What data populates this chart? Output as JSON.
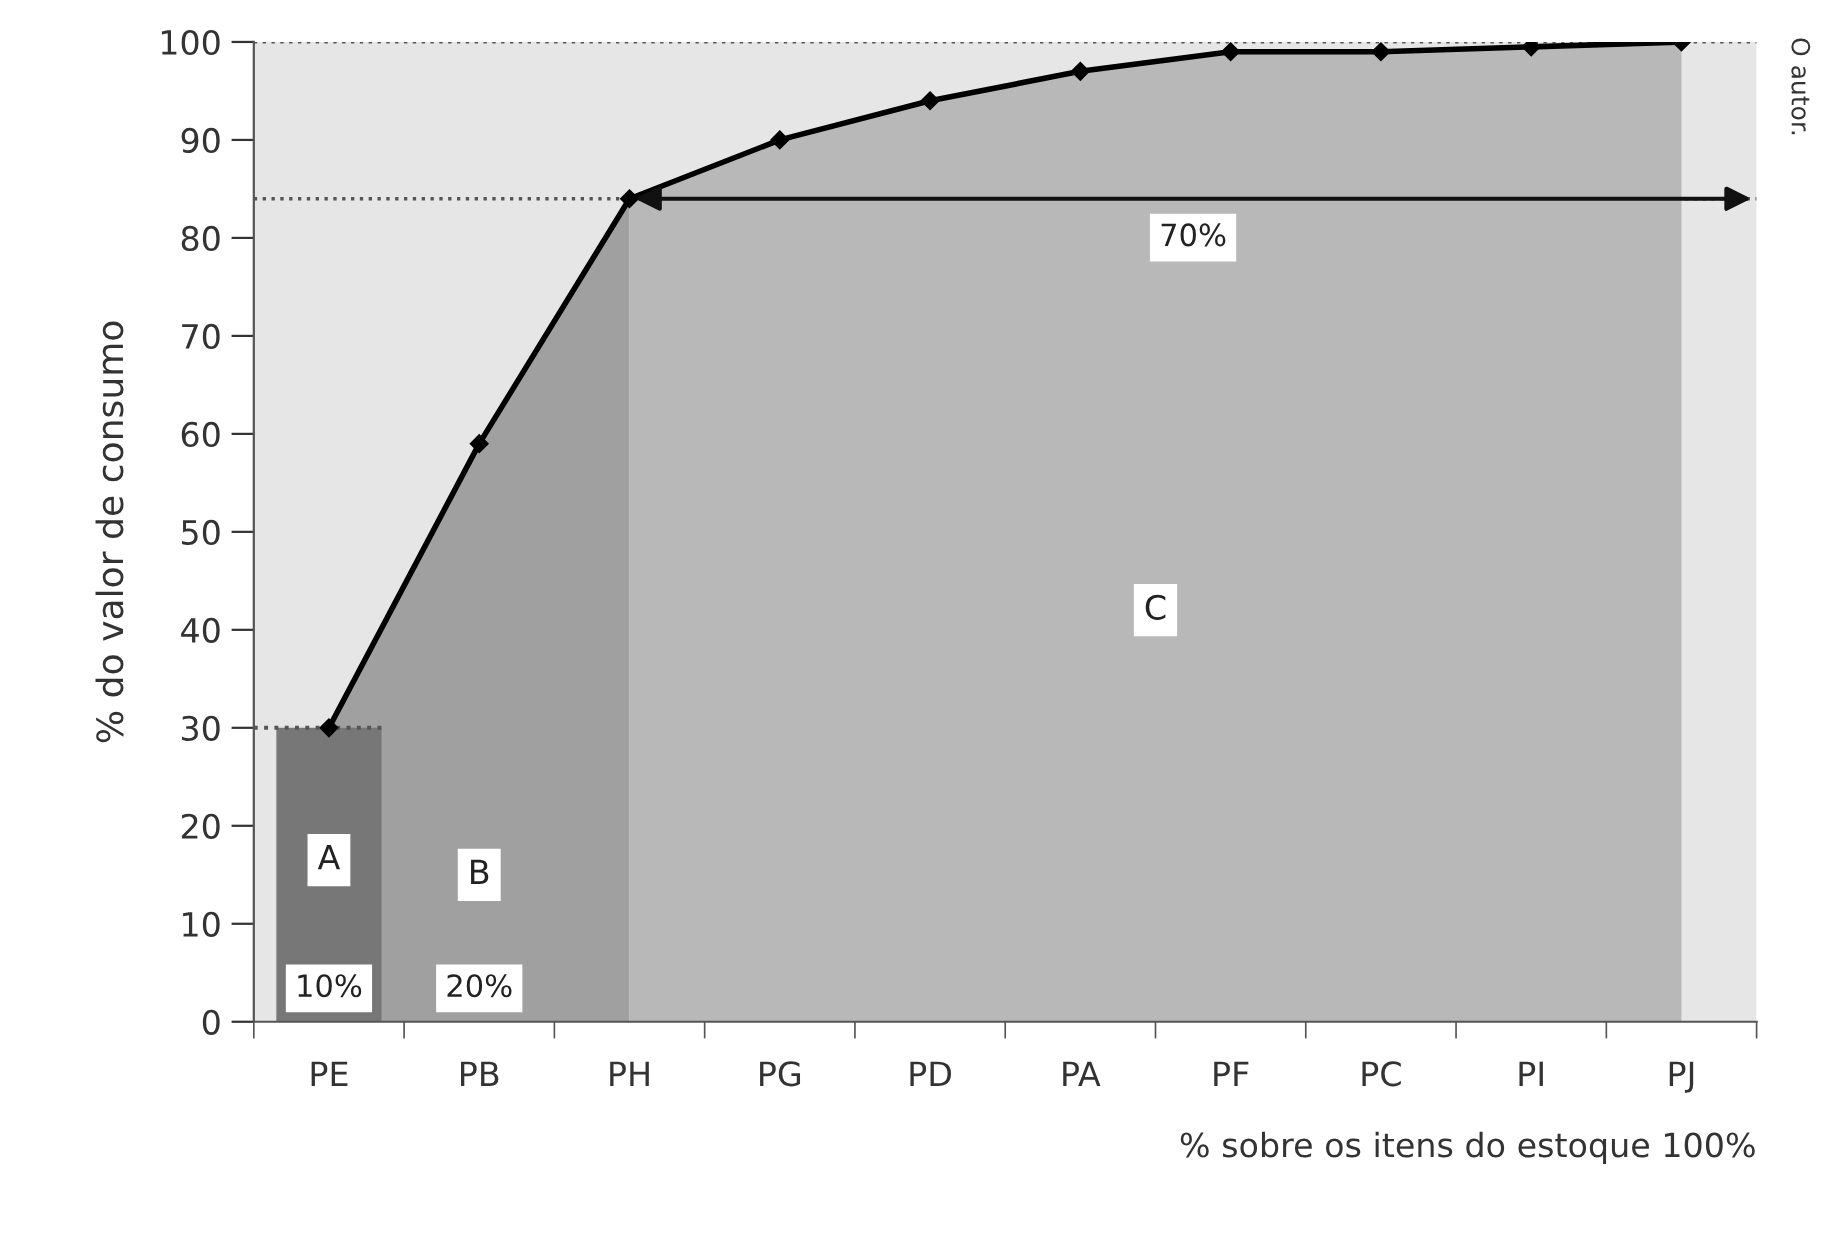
{
  "chart_data": {
    "type": "line",
    "xlabel": "% sobre os itens do estoque 100%",
    "ylabel": "% do valor de consumo",
    "categories": [
      "PE",
      "PB",
      "PH",
      "PG",
      "PD",
      "PA",
      "PF",
      "PC",
      "PI",
      "PJ"
    ],
    "series": [
      {
        "type": "bar",
        "name": "A",
        "color": "#777777",
        "values": [
          30,
          null,
          null,
          null,
          null,
          null,
          null,
          null,
          null,
          null
        ]
      },
      {
        "type": "area",
        "name": "B",
        "color": "#a0a0a0",
        "values": [
          30,
          59,
          84,
          null,
          null,
          null,
          null,
          null,
          null,
          null
        ]
      },
      {
        "type": "area",
        "name": "C",
        "color": "#b8b8b8",
        "values": [
          null,
          null,
          84,
          90,
          94,
          97,
          99,
          99,
          99.5,
          100
        ]
      },
      {
        "color": "#000000",
        "marker": "diamond",
        "values": [
          30,
          59,
          84,
          90,
          94,
          97,
          99,
          99,
          99.5,
          100
        ]
      }
    ],
    "annotations": [
      "10%",
      "20%",
      "70%",
      "O autor."
    ],
    "bands": [
      {
        "axis": "y",
        "from": 0,
        "to": 100,
        "color": "#e6e6e6"
      }
    ],
    "ref_lines": [
      {
        "axis": "y",
        "value": 100,
        "color": "#555555",
        "line_style": "dotted"
      },
      {
        "axis": "y",
        "value": 84,
        "color": "#555555",
        "line_style": "dotted"
      },
      {
        "axis": "y",
        "value": 30,
        "color": "#555555",
        "line_style": "dotted"
      }
    ],
    "ylim": [
      0,
      100
    ],
    "yticks": [
      0,
      10,
      20,
      30,
      40,
      50,
      60,
      70,
      80,
      90,
      100
    ],
    "line_style": "solid",
    "grid": false,
    "legend": false
  }
}
